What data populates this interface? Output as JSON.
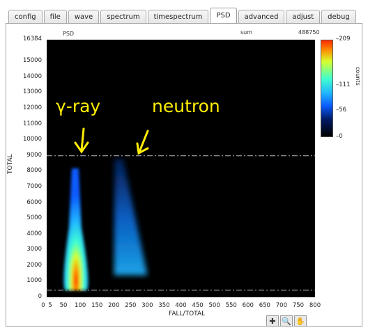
{
  "tabs": [
    {
      "label": "config",
      "active": false
    },
    {
      "label": "file",
      "active": false
    },
    {
      "label": "wave",
      "active": false
    },
    {
      "label": "spectrum",
      "active": false
    },
    {
      "label": "timespectrum",
      "active": false
    },
    {
      "label": "PSD",
      "active": true
    },
    {
      "label": "advanced",
      "active": false
    },
    {
      "label": "adjust",
      "active": false
    },
    {
      "label": "debug",
      "active": false
    }
  ],
  "plot": {
    "title": "PSD",
    "sum_label": "sum",
    "sum_value": "488750",
    "annotations": {
      "gamma": "γ-ray",
      "neutron": "neutron"
    }
  },
  "chart_data": {
    "type": "heatmap",
    "xlabel": "FALL/TOTAL",
    "ylabel": "TOTAL",
    "xlim": [
      0,
      800
    ],
    "ylim": [
      0,
      16384
    ],
    "x_ticks": [
      "0",
      "5",
      "50",
      "100",
      "150",
      "200",
      "250",
      "300",
      "350",
      "400",
      "450",
      "500",
      "550",
      "600",
      "650",
      "700",
      "750",
      "800"
    ],
    "y_ticks": [
      "0",
      "1000",
      "2000",
      "3000",
      "4000",
      "5000",
      "6000",
      "7000",
      "8000",
      "9000",
      "10000",
      "11000",
      "12000",
      "13000",
      "14000",
      "15000",
      "16384"
    ],
    "threshold_lines_y": [
      9000,
      450
    ],
    "colorbar": {
      "label": "counts",
      "ticks": [
        "209",
        "111",
        "56",
        "0"
      ],
      "max": 209
    },
    "regions": [
      {
        "name": "γ-ray",
        "center_x": 85,
        "x_range": [
          55,
          120
        ],
        "y_range": [
          450,
          8200
        ],
        "peak_counts": 209
      },
      {
        "name": "neutron",
        "center_x": 240,
        "x_range": [
          180,
          300
        ],
        "y_range": [
          1400,
          8800
        ],
        "peak_counts": 70
      }
    ]
  },
  "toolbar": {
    "tools": [
      "crosshair-tool",
      "zoom-tool",
      "pan-tool"
    ]
  }
}
